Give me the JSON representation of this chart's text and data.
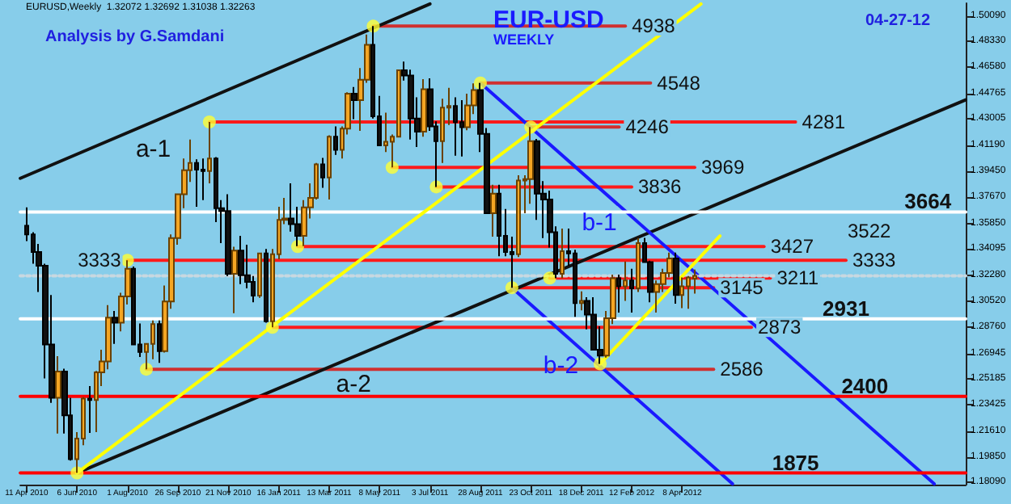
{
  "chart_data": {
    "type": "candlestick",
    "title": "EUR-USD",
    "subtitle": "WEEKLY",
    "annotations": [
      "EURUSD,Weekly  1.32072 1.32692 1.31038 1.32263",
      "Analysis by G.Samdani",
      "04-27-12",
      "3522",
      {
        "text": "3333",
        "x": "2010-08-01",
        "y": 1.3333
      },
      {
        "text": "4938",
        "x": "2012-02-05",
        "y": 1.4938
      },
      {
        "text": "4548",
        "x": "2012-03-04",
        "y": 1.4548
      },
      {
        "text": "4281",
        "x": "2012-08-12",
        "y": 1.4281
      },
      {
        "text": "4246",
        "x": "2012-01-29",
        "y": 1.4246
      },
      {
        "text": "3969",
        "x": "2012-04-22",
        "y": 1.3969
      },
      {
        "text": "3836",
        "x": "2012-02-12",
        "y": 1.3836
      },
      {
        "text": "3427",
        "x": "2012-07-08",
        "y": 1.3427
      },
      {
        "text": "3333",
        "x": "2012-10-07",
        "y": 1.3333
      },
      {
        "text": "3211",
        "x": "2012-07-15",
        "y": 1.3211
      },
      {
        "text": "3145",
        "x": "2012-05-13",
        "y": 1.3145
      },
      {
        "text": "2873",
        "x": "2012-06-24",
        "y": 1.2873
      },
      {
        "text": "2586",
        "x": "2012-05-13",
        "y": 1.2586
      },
      {
        "text": "3664",
        "x": "2013-01-06",
        "y": 1.3664
      },
      {
        "text": "2931",
        "x": "2012-10-07",
        "y": 1.2931
      },
      {
        "text": "2400",
        "x": "2012-10-28",
        "y": 1.24
      },
      {
        "text": "1875",
        "x": "2012-08-12",
        "y": 1.1875
      }
    ],
    "x": [
      "2010-04-11",
      "2010-04-18",
      "2010-04-25",
      "2010-05-02",
      "2010-05-09",
      "2010-05-16",
      "2010-05-23",
      "2010-05-30",
      "2010-06-06",
      "2010-06-13",
      "2010-06-20",
      "2010-06-27",
      "2010-07-04",
      "2010-07-11",
      "2010-07-18",
      "2010-07-25",
      "2010-08-01",
      "2010-08-08",
      "2010-08-15",
      "2010-08-22",
      "2010-08-29",
      "2010-09-05",
      "2010-09-12",
      "2010-09-19",
      "2010-09-26",
      "2010-10-03",
      "2010-10-10",
      "2010-10-17",
      "2010-10-24",
      "2010-10-31",
      "2010-11-07",
      "2010-11-14",
      "2010-11-21",
      "2010-11-28",
      "2010-12-05",
      "2010-12-12",
      "2010-12-19",
      "2010-12-26",
      "2011-01-02",
      "2011-01-09",
      "2011-01-16",
      "2011-01-23",
      "2011-01-30",
      "2011-02-06",
      "2011-02-13",
      "2011-02-20",
      "2011-02-27",
      "2011-03-06",
      "2011-03-13",
      "2011-03-20",
      "2011-03-27",
      "2011-04-03",
      "2011-04-10",
      "2011-04-17",
      "2011-04-24",
      "2011-05-01",
      "2011-05-08",
      "2011-05-15",
      "2011-05-22",
      "2011-05-29",
      "2011-06-05",
      "2011-06-12",
      "2011-06-19",
      "2011-06-26",
      "2011-07-03",
      "2011-07-10",
      "2011-07-17",
      "2011-07-24",
      "2011-07-31",
      "2011-08-07",
      "2011-08-14",
      "2011-08-21",
      "2011-08-28",
      "2011-09-04",
      "2011-09-11",
      "2011-09-18",
      "2011-09-25",
      "2011-10-02",
      "2011-10-09",
      "2011-10-16",
      "2011-10-23",
      "2011-10-30",
      "2011-11-06",
      "2011-11-13",
      "2011-11-20",
      "2011-11-27",
      "2011-12-04",
      "2011-12-11",
      "2011-12-18",
      "2011-12-25",
      "2012-01-01",
      "2012-01-08",
      "2012-01-15",
      "2012-01-22",
      "2012-01-29",
      "2012-02-05",
      "2012-02-12",
      "2012-02-19",
      "2012-02-26",
      "2012-03-04",
      "2012-03-11",
      "2012-03-18",
      "2012-03-25",
      "2012-04-01",
      "2012-04-08",
      "2012-04-15",
      "2012-04-22"
    ],
    "ohlc": [
      [
        1.357,
        1.3695,
        1.3465,
        1.351
      ],
      [
        1.351,
        1.3525,
        1.331,
        1.339
      ],
      [
        1.339,
        1.3445,
        1.3115,
        1.3295
      ],
      [
        1.3295,
        1.331,
        1.2523,
        1.2755
      ],
      [
        1.2755,
        1.3095,
        1.2355,
        1.239
      ],
      [
        1.239,
        1.2675,
        1.2145,
        1.257
      ],
      [
        1.257,
        1.259,
        1.2145,
        1.227
      ],
      [
        1.227,
        1.239,
        1.196,
        1.197
      ],
      [
        1.197,
        1.2155,
        1.1875,
        1.211
      ],
      [
        1.211,
        1.2395,
        1.2065,
        1.2385
      ],
      [
        1.2385,
        1.247,
        1.215,
        1.2375
      ],
      [
        1.2375,
        1.2575,
        1.2155,
        1.2565
      ],
      [
        1.2565,
        1.272,
        1.247,
        1.264
      ],
      [
        1.264,
        1.3025,
        1.2585,
        1.294
      ],
      [
        1.294,
        1.2985,
        1.276,
        1.2905
      ],
      [
        1.2905,
        1.311,
        1.2845,
        1.3085
      ],
      [
        1.3085,
        1.3333,
        1.303,
        1.3275
      ],
      [
        1.3275,
        1.329,
        1.275,
        1.2755
      ],
      [
        1.2755,
        1.29,
        1.267,
        1.2705
      ],
      [
        1.2705,
        1.276,
        1.2586,
        1.276
      ],
      [
        1.276,
        1.292,
        1.2655,
        1.2895
      ],
      [
        1.2895,
        1.292,
        1.263,
        1.271
      ],
      [
        1.271,
        1.316,
        1.27,
        1.305
      ],
      [
        1.305,
        1.351,
        1.3,
        1.3485
      ],
      [
        1.3485,
        1.379,
        1.344,
        1.3785
      ],
      [
        1.3785,
        1.403,
        1.369,
        1.395
      ],
      [
        1.395,
        1.416,
        1.387,
        1.4
      ],
      [
        1.4,
        1.4025,
        1.37,
        1.3955
      ],
      [
        1.3955,
        1.403,
        1.3745,
        1.3945
      ],
      [
        1.3945,
        1.4281,
        1.386,
        1.403
      ],
      [
        1.403,
        1.404,
        1.3595,
        1.369
      ],
      [
        1.369,
        1.3745,
        1.345,
        1.367
      ],
      [
        1.367,
        1.3785,
        1.3225,
        1.324
      ],
      [
        1.324,
        1.3425,
        1.297,
        1.34
      ],
      [
        1.34,
        1.35,
        1.317,
        1.323
      ],
      [
        1.323,
        1.344,
        1.314,
        1.3185
      ],
      [
        1.3185,
        1.3225,
        1.3045,
        1.309
      ],
      [
        1.309,
        1.3385,
        1.3075,
        1.338
      ],
      [
        1.338,
        1.341,
        1.2905,
        1.2915
      ],
      [
        1.2915,
        1.341,
        1.2873,
        1.3375
      ],
      [
        1.3375,
        1.37,
        1.334,
        1.361
      ],
      [
        1.361,
        1.376,
        1.358,
        1.362
      ],
      [
        1.362,
        1.386,
        1.353,
        1.358
      ],
      [
        1.358,
        1.37,
        1.343,
        1.35
      ],
      [
        1.35,
        1.3745,
        1.343,
        1.3695
      ],
      [
        1.3695,
        1.386,
        1.362,
        1.376
      ],
      [
        1.376,
        1.4,
        1.375,
        1.399
      ],
      [
        1.399,
        1.4035,
        1.383,
        1.39
      ],
      [
        1.39,
        1.419,
        1.375,
        1.418
      ],
      [
        1.418,
        1.425,
        1.4055,
        1.409
      ],
      [
        1.409,
        1.425,
        1.403,
        1.4235
      ],
      [
        1.4235,
        1.4485,
        1.4195,
        1.4475
      ],
      [
        1.4475,
        1.452,
        1.43,
        1.443
      ],
      [
        1.443,
        1.465,
        1.422,
        1.457
      ],
      [
        1.457,
        1.488,
        1.455,
        1.481
      ],
      [
        1.481,
        1.4938,
        1.4305,
        1.432
      ],
      [
        1.432,
        1.446,
        1.4115,
        1.412
      ],
      [
        1.412,
        1.4345,
        1.4075,
        1.4145
      ],
      [
        1.4145,
        1.4195,
        1.3969,
        1.418
      ],
      [
        1.418,
        1.464,
        1.4175,
        1.4635
      ],
      [
        1.4635,
        1.4695,
        1.4565,
        1.46
      ],
      [
        1.46,
        1.464,
        1.416,
        1.4305
      ],
      [
        1.4305,
        1.445,
        1.411,
        1.4215
      ],
      [
        1.4215,
        1.4575,
        1.418,
        1.4505
      ],
      [
        1.4505,
        1.458,
        1.422,
        1.425
      ],
      [
        1.425,
        1.4285,
        1.3836,
        1.415
      ],
      [
        1.415,
        1.444,
        1.4,
        1.438
      ],
      [
        1.438,
        1.4515,
        1.426,
        1.439
      ],
      [
        1.439,
        1.445,
        1.405,
        1.428
      ],
      [
        1.428,
        1.443,
        1.4045,
        1.4245
      ],
      [
        1.4245,
        1.4475,
        1.4225,
        1.4395
      ],
      [
        1.4395,
        1.4545,
        1.4335,
        1.45
      ],
      [
        1.45,
        1.4548,
        1.4075,
        1.42
      ],
      [
        1.42,
        1.424,
        1.365,
        1.3655
      ],
      [
        1.3655,
        1.385,
        1.3495,
        1.379
      ],
      [
        1.379,
        1.385,
        1.336,
        1.35
      ],
      [
        1.35,
        1.3685,
        1.336,
        1.339
      ],
      [
        1.339,
        1.3495,
        1.3145,
        1.3375
      ],
      [
        1.3375,
        1.3915,
        1.3355,
        1.388
      ],
      [
        1.388,
        1.3915,
        1.3655,
        1.389
      ],
      [
        1.389,
        1.4246,
        1.372,
        1.415
      ],
      [
        1.415,
        1.4165,
        1.361,
        1.379
      ],
      [
        1.379,
        1.3875,
        1.3485,
        1.375
      ],
      [
        1.375,
        1.381,
        1.342,
        1.3525
      ],
      [
        1.3525,
        1.3565,
        1.321,
        1.324
      ],
      [
        1.324,
        1.355,
        1.321,
        1.3395
      ],
      [
        1.3395,
        1.355,
        1.3295,
        1.338
      ],
      [
        1.338,
        1.3405,
        1.2945,
        1.304
      ],
      [
        1.304,
        1.312,
        1.299,
        1.3055
      ],
      [
        1.3055,
        1.308,
        1.286,
        1.296
      ],
      [
        1.296,
        1.308,
        1.272,
        1.272
      ],
      [
        1.272,
        1.288,
        1.2623,
        1.268
      ],
      [
        1.268,
        1.2985,
        1.2665,
        1.2935
      ],
      [
        1.2935,
        1.3235,
        1.2895,
        1.321
      ],
      [
        1.321,
        1.3235,
        1.2975,
        1.3155
      ],
      [
        1.3155,
        1.3325,
        1.3055,
        1.3195
      ],
      [
        1.3195,
        1.3275,
        1.2975,
        1.314
      ],
      [
        1.314,
        1.3485,
        1.3115,
        1.345
      ],
      [
        1.345,
        1.3486,
        1.3315,
        1.332
      ],
      [
        1.332,
        1.333,
        1.3045,
        1.3115
      ],
      [
        1.3115,
        1.3195,
        1.2975,
        1.317
      ],
      [
        1.317,
        1.3275,
        1.3115,
        1.3245
      ],
      [
        1.3245,
        1.3385,
        1.3215,
        1.3345
      ],
      [
        1.3345,
        1.3385,
        1.3035,
        1.3095
      ],
      [
        1.3095,
        1.3215,
        1.3005,
        1.3155
      ],
      [
        1.3155,
        1.3225,
        1.3,
        1.3215
      ],
      [
        1.32072,
        1.32692,
        1.31038,
        1.32263
      ]
    ],
    "xlim": [
      "2010-04-04",
      "2013-02-17"
    ],
    "ylim": [
      1.1795,
      1.5095
    ],
    "xticks": [
      {
        "value": "2010-04-11",
        "label": "11 Apr 2010"
      },
      {
        "value": "2010-06-06",
        "label": "6 Jun 2010"
      },
      {
        "value": "2010-08-01",
        "label": "1 Aug 2010"
      },
      {
        "value": "2010-09-26",
        "label": "26 Sep 2010"
      },
      {
        "value": "2010-11-21",
        "label": "21 Nov 2010"
      },
      {
        "value": "2011-01-16",
        "label": "16 Jan 2011"
      },
      {
        "value": "2011-03-13",
        "label": "13 Mar 2011"
      },
      {
        "value": "2011-05-08",
        "label": "8 May 2011"
      },
      {
        "value": "2011-07-03",
        "label": "3 Jul 2011"
      },
      {
        "value": "2011-08-28",
        "label": "28 Aug 2011"
      },
      {
        "value": "2011-10-23",
        "label": "23 Oct 2011"
      },
      {
        "value": "2011-12-18",
        "label": "18 Dec 2011"
      },
      {
        "value": "2012-02-12",
        "label": "12 Feb 2012"
      },
      {
        "value": "2012-04-08",
        "label": "8 Apr 2012"
      }
    ],
    "yticks": [
      {
        "value": 1.5009,
        "label": "1.50090"
      },
      {
        "value": 1.4833,
        "label": "1.48330"
      },
      {
        "value": 1.4658,
        "label": "1.46580"
      },
      {
        "value": 1.44765,
        "label": "1.44765"
      },
      {
        "value": 1.43005,
        "label": "1.43005"
      },
      {
        "value": 1.4119,
        "label": "1.41190"
      },
      {
        "value": 1.3945,
        "label": "1.39450"
      },
      {
        "value": 1.3767,
        "label": "1.37670"
      },
      {
        "value": 1.3585,
        "label": "1.35850"
      },
      {
        "value": 1.34095,
        "label": "1.34095"
      },
      {
        "value": 1.3228,
        "label": "1.32280"
      },
      {
        "value": 1.3052,
        "label": "1.30520"
      },
      {
        "value": 1.2876,
        "label": "1.28760"
      },
      {
        "value": 1.26945,
        "label": "1.26945"
      },
      {
        "value": 1.25185,
        "label": "1.25185"
      },
      {
        "value": 1.23425,
        "label": "1.23425"
      },
      {
        "value": 1.2161,
        "label": "1.21610"
      },
      {
        "value": 1.1985,
        "label": "1.19850"
      },
      {
        "value": 1.1809,
        "label": "1.18090"
      }
    ],
    "series": [
      {
        "type": "line",
        "color": "#d03030",
        "x": [
          "2011-05-01",
          "2012-02-05"
        ],
        "values": [
          1.4938,
          1.4938
        ]
      },
      {
        "type": "line",
        "color": "#d03030",
        "x": [
          "2011-08-28",
          "2012-03-04"
        ],
        "values": [
          1.4548,
          1.4548
        ]
      },
      {
        "type": "line",
        "color": "#ff1a1a",
        "x": [
          "2010-10-31",
          "2012-08-12"
        ],
        "values": [
          1.4281,
          1.4281
        ]
      },
      {
        "type": "line",
        "color": "#d03030",
        "x": [
          "2011-10-23",
          "2012-01-29"
        ],
        "values": [
          1.4246,
          1.4246
        ]
      },
      {
        "type": "line",
        "color": "#ff1a1a",
        "x": [
          "2011-05-22",
          "2012-04-22"
        ],
        "values": [
          1.3969,
          1.3969
        ]
      },
      {
        "type": "line",
        "color": "#ff1a1a",
        "x": [
          "2011-07-10",
          "2012-02-12"
        ],
        "values": [
          1.3836,
          1.3836
        ]
      },
      {
        "type": "line",
        "color": "#ff1a1a",
        "x": [
          "2011-02-06",
          "2012-07-08"
        ],
        "values": [
          1.3427,
          1.3427
        ]
      },
      {
        "type": "line",
        "color": "#ff1a1a",
        "x": [
          "2010-08-01",
          "2012-10-07"
        ],
        "values": [
          1.3333,
          1.3333
        ]
      },
      {
        "type": "line",
        "color": "#ff1a1a",
        "x": [
          "2011-11-13",
          "2012-07-15"
        ],
        "values": [
          1.3211,
          1.3211
        ]
      },
      {
        "type": "line",
        "color": "#ff1a1a",
        "x": [
          "2011-10-02",
          "2012-05-13"
        ],
        "values": [
          1.3145,
          1.3145
        ]
      },
      {
        "type": "line",
        "color": "#ff1a1a",
        "x": [
          "2011-01-09",
          "2012-06-24"
        ],
        "values": [
          1.2873,
          1.2873
        ]
      },
      {
        "type": "line",
        "color": "#d03030",
        "x": [
          "2010-08-22",
          "2012-05-13"
        ],
        "values": [
          1.2586,
          1.2586
        ]
      },
      {
        "type": "line",
        "name": "a-1",
        "color": "#111111",
        "x": [
          "2010-04-04",
          "2011-07-03"
        ],
        "values": [
          1.3895,
          1.509
        ]
      },
      {
        "type": "line",
        "name": "a-2",
        "color": "#111111",
        "x": [
          "2010-06-06",
          "2013-02-17"
        ],
        "values": [
          1.1875,
          1.4433
        ]
      },
      {
        "type": "line",
        "name": "b-1",
        "color": "#1a1aff",
        "x": [
          "2011-08-28",
          "2013-01-13"
        ],
        "values": [
          1.4548,
          1.18
        ]
      },
      {
        "type": "line",
        "name": "b-2",
        "color": "#1a1aff",
        "x": [
          "2011-10-02",
          "2012-06-03"
        ],
        "values": [
          1.3145,
          1.18
        ]
      },
      {
        "type": "line",
        "color": "#ffffff",
        "x": [
          "2010-04-04",
          "2013-02-17"
        ],
        "values": [
          1.3664,
          1.3664
        ]
      },
      {
        "type": "line",
        "color": "#ffffff",
        "x": [
          "2010-04-04",
          "2013-02-17"
        ],
        "values": [
          1.2931,
          1.2931
        ]
      },
      {
        "type": "line",
        "color": "#ff0000",
        "x": [
          "2010-04-04",
          "2013-02-17"
        ],
        "values": [
          1.24,
          1.24
        ]
      },
      {
        "type": "line",
        "color": "#ff0000",
        "x": [
          "2010-04-04",
          "2013-02-17"
        ],
        "values": [
          1.1875,
          1.1875
        ]
      },
      {
        "type": "line",
        "color": "#c8d8e0",
        "line_style": "dotted",
        "x": [
          "2010-04-04",
          "2013-02-17"
        ],
        "values": [
          1.32263,
          1.32263
        ]
      },
      {
        "type": "line",
        "color": "#ffff00",
        "x": [
          "2010-06-06",
          "2012-04-29"
        ],
        "values": [
          1.1875,
          1.509
        ]
      },
      {
        "type": "line",
        "color": "#ffff00",
        "x": [
          "2012-01-08",
          "2012-05-20"
        ],
        "values": [
          1.2623,
          1.35
        ]
      },
      {
        "type": "scatter",
        "color": "#ffff33",
        "x": [
          "2011-05-01",
          "2011-08-28",
          "2010-10-31",
          "2011-10-23",
          "2011-05-22",
          "2011-07-10",
          "2011-02-06",
          "2010-08-01",
          "2011-11-13",
          "2011-10-02",
          "2011-01-09",
          "2010-08-22",
          "2012-01-08",
          "2010-06-06"
        ],
        "values": [
          1.4938,
          1.4548,
          1.4281,
          1.4246,
          1.3969,
          1.3836,
          1.3427,
          1.3333,
          1.3211,
          1.3145,
          1.2873,
          1.2586,
          1.2623,
          1.1875
        ]
      }
    ],
    "legend": false
  }
}
